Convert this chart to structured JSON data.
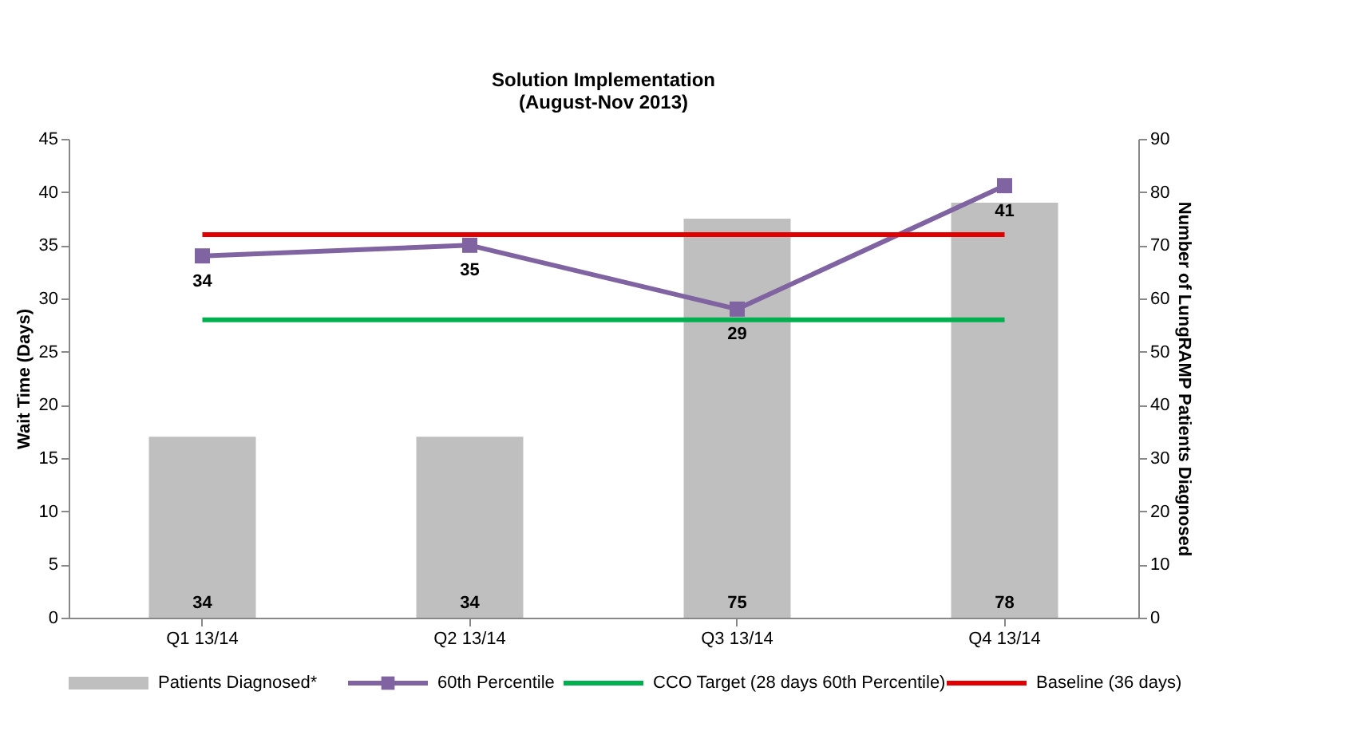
{
  "chart_data": {
    "type": "bar",
    "annotations": [
      "Solution Implementation\n(August-Nov 2013)"
    ],
    "categories": [
      "Q1 13/14",
      "Q2 13/14",
      "Q3 13/14",
      "Q4 13/14"
    ],
    "ylabel": "Wait Time (Days)",
    "y2label": "Number of LungRAMP Patients Diagnosed",
    "ylim": [
      0,
      45
    ],
    "yticks": [
      0,
      5,
      10,
      15,
      20,
      25,
      30,
      35,
      40,
      45
    ],
    "y2lim": [
      0,
      90
    ],
    "y2ticks": [
      0,
      10,
      20,
      30,
      40,
      50,
      60,
      70,
      80,
      90
    ],
    "grid": false,
    "legend": "bottom",
    "series": [
      {
        "name": "Patients Diagnosed*",
        "type": "bar",
        "axis": "y2",
        "color": "#bfbfbf",
        "values": [
          34,
          34,
          75,
          78
        ],
        "value_labels": [
          "34",
          "34",
          "75",
          "78"
        ]
      },
      {
        "name": "60th Percentile",
        "type": "line",
        "marker": "square",
        "color": "#8064a2",
        "values": [
          34,
          35,
          29,
          40.6
        ],
        "value_labels": [
          "34",
          "35",
          "29",
          "41"
        ]
      },
      {
        "name": "CCO Target (28 days 60th Percentile)",
        "type": "line",
        "color": "#00b050",
        "values": [
          28,
          28,
          28,
          28
        ]
      },
      {
        "name": "Baseline (36 days)",
        "type": "line",
        "color": "#e00000",
        "values": [
          36,
          36,
          36,
          36
        ]
      }
    ]
  }
}
